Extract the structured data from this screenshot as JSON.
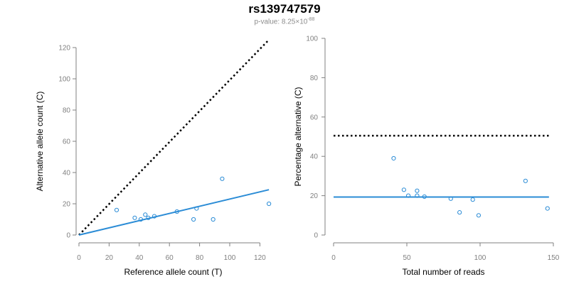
{
  "header": {
    "title": "rs139747579",
    "subtitle_prefix": "p-value: 8.25×10",
    "subtitle_exponent": "-88"
  },
  "colors": {
    "series": "#2b8cd6",
    "reference_line": "#000000",
    "axis": "#808080"
  },
  "chart_data": [
    {
      "type": "scatter",
      "title": "",
      "xlabel": "Reference allele count (T)",
      "ylabel": "Alternative allele count (C)",
      "xlim": [
        0,
        125
      ],
      "ylim": [
        0,
        120
      ],
      "xticks": [
        0,
        20,
        40,
        60,
        80,
        100,
        120
      ],
      "yticks": [
        0,
        20,
        40,
        60,
        80,
        100,
        120
      ],
      "points": [
        {
          "x": 25,
          "y": 16
        },
        {
          "x": 37,
          "y": 11
        },
        {
          "x": 41,
          "y": 10
        },
        {
          "x": 44,
          "y": 13
        },
        {
          "x": 46,
          "y": 11
        },
        {
          "x": 50,
          "y": 12
        },
        {
          "x": 65,
          "y": 15
        },
        {
          "x": 76,
          "y": 10
        },
        {
          "x": 78,
          "y": 17
        },
        {
          "x": 89,
          "y": 10
        },
        {
          "x": 95,
          "y": 36
        },
        {
          "x": 126,
          "y": 20
        }
      ],
      "fit_line": {
        "x": [
          0,
          126
        ],
        "y": [
          0,
          29
        ]
      },
      "reference_line": {
        "style": "dotted",
        "x": [
          0,
          126
        ],
        "y": [
          0,
          125
        ]
      }
    },
    {
      "type": "scatter",
      "title": "",
      "xlabel": "Total number of reads",
      "ylabel": "Percentage alternative (C)",
      "xlim": [
        0,
        150
      ],
      "ylim": [
        0,
        100
      ],
      "xticks": [
        0,
        50,
        100,
        150
      ],
      "yticks": [
        0,
        20,
        40,
        60,
        80,
        100
      ],
      "points": [
        {
          "x": 41,
          "y": 39
        },
        {
          "x": 48,
          "y": 23
        },
        {
          "x": 51,
          "y": 20
        },
        {
          "x": 57,
          "y": 20
        },
        {
          "x": 57,
          "y": 22.5
        },
        {
          "x": 62,
          "y": 19.5
        },
        {
          "x": 80,
          "y": 18.5
        },
        {
          "x": 86,
          "y": 11.5
        },
        {
          "x": 95,
          "y": 18
        },
        {
          "x": 99,
          "y": 10
        },
        {
          "x": 131,
          "y": 27.5
        },
        {
          "x": 146,
          "y": 13.5
        }
      ],
      "fit_line": {
        "x": [
          0,
          147
        ],
        "y": [
          19.3,
          19.3
        ]
      },
      "reference_line": {
        "style": "dotted",
        "x": [
          0,
          147
        ],
        "y": [
          50.5,
          50.5
        ]
      }
    }
  ]
}
